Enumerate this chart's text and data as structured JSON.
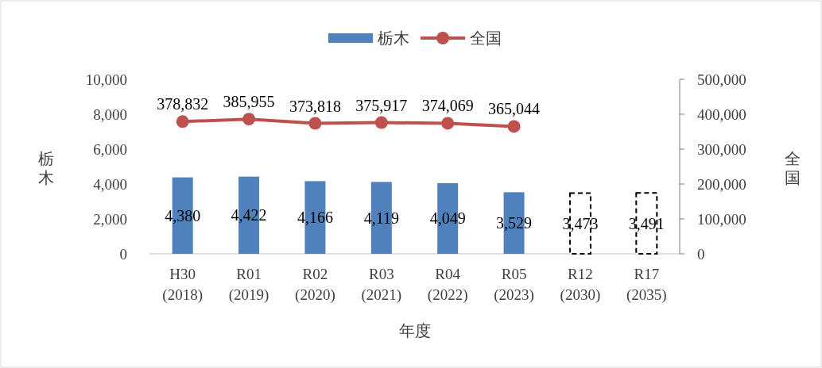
{
  "chart_data": {
    "type": "bar",
    "stacked": true,
    "xlabel": "年度",
    "ylabel": "栃木",
    "y2label": "全国",
    "legend": "top",
    "grid": false,
    "categories": [
      "H30\n(2018)",
      "R01\n(2019)",
      "R02\n(2020)",
      "R03\n(2021)",
      "R04\n(2022)",
      "R05\n(2023)",
      "R12\n(2030)",
      "R17\n(2035)"
    ],
    "ylim": [
      0,
      10000
    ],
    "yticks": [
      0,
      {
        "value": 2000,
        "label": "2,000"
      },
      {
        "value": 4000,
        "label": "4,000"
      },
      {
        "value": 6000,
        "label": "6,000"
      },
      {
        "value": 8000,
        "label": "8,000"
      },
      {
        "value": 10000,
        "label": "10,000"
      }
    ],
    "y2lim": [
      0,
      500000
    ],
    "y2ticks": [
      0,
      {
        "value": 100000,
        "label": "100,000"
      },
      {
        "value": 200000,
        "label": "200,000"
      },
      {
        "value": 300000,
        "label": "300,000"
      },
      {
        "value": 400000,
        "label": "400,000"
      },
      {
        "value": 500000,
        "label": "500,000"
      }
    ],
    "series": [
      {
        "name": "栃木",
        "color": "#4f81bd",
        "values": [
          4380,
          4422,
          4166,
          4119,
          4049,
          3529,
          null,
          null
        ],
        "value_labels": [
          "4,380",
          "4,422",
          "4,166",
          "4,119",
          "4,049",
          "3,529",
          null,
          null
        ]
      },
      {
        "color": "#ffffff",
        "line_style": "dashed",
        "values": [
          null,
          null,
          null,
          null,
          null,
          null,
          3473,
          3491
        ],
        "value_labels": [
          null,
          null,
          null,
          null,
          null,
          null,
          "3,473",
          "3,491"
        ]
      },
      {
        "name": "全国",
        "type": "line",
        "axis": "y2",
        "color": "#c0504d",
        "marker": "circle",
        "values": [
          378832,
          385955,
          373818,
          375917,
          374069,
          365044,
          null,
          null
        ],
        "value_labels": [
          "378,832",
          "385,955",
          "373,818",
          "375,917",
          "374,069",
          "365,044",
          null,
          null
        ]
      }
    ]
  }
}
